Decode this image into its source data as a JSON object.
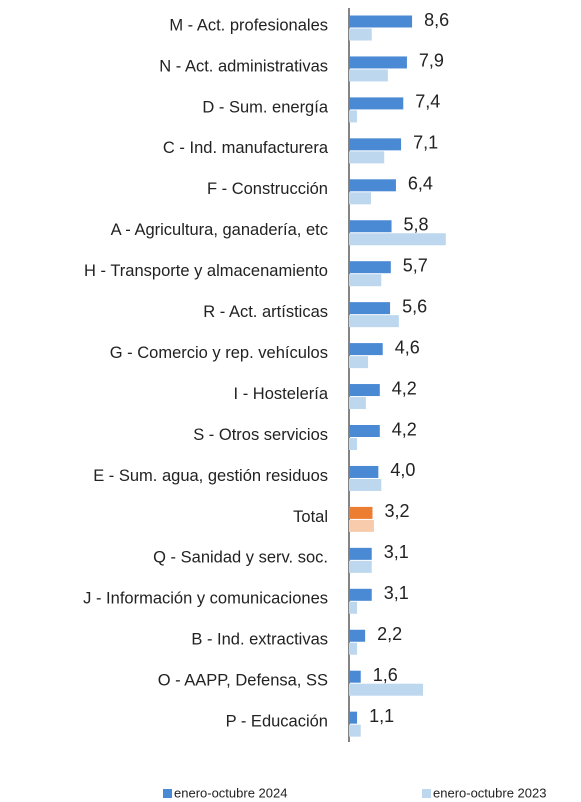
{
  "chart_data": {
    "type": "bar",
    "orientation": "horizontal",
    "categories": [
      "M - Act. profesionales",
      "N - Act. administrativas",
      "D - Sum. energía",
      "C - Ind. manufacturera",
      "F - Construcción",
      "A - Agricultura, ganadería, etc",
      "H - Transporte y almacenamiento",
      "R - Act. artísticas",
      "G - Comercio y rep. vehículos",
      "I - Hostelería",
      "S - Otros servicios",
      "E - Sum. agua, gestión residuos",
      "Total",
      "Q - Sanidad y serv. soc.",
      "J - Información y comunicaciones",
      "B - Ind. extractivas",
      "O - AAPP, Defensa, SS",
      "P - Educación"
    ],
    "series": [
      {
        "name": "enero-octubre 2024",
        "color": "#4a89d4",
        "values": [
          8.6,
          7.9,
          7.4,
          7.1,
          6.4,
          5.8,
          5.7,
          5.6,
          4.6,
          4.2,
          4.2,
          4.0,
          3.2,
          3.1,
          3.1,
          2.2,
          1.6,
          1.1
        ],
        "value_labels": [
          "8,6",
          "7,9",
          "7,4",
          "7,1",
          "6,4",
          "5,8",
          "5,7",
          "5,6",
          "4,6",
          "4,2",
          "4,2",
          "4,0",
          "3,2",
          "3,1",
          "3,1",
          "2,2",
          "1,6",
          "1,1"
        ]
      },
      {
        "name": "enero-octubre 2023",
        "color": "#bdd7ee",
        "values": [
          3.1,
          5.3,
          1.1,
          4.8,
          3.0,
          13.2,
          4.4,
          6.8,
          2.6,
          2.3,
          1.1,
          4.4,
          3.4,
          3.1,
          1.1,
          1.1,
          10.1,
          1.6
        ]
      }
    ],
    "highlight_index": 12,
    "highlight_colors": [
      "#ed7d31",
      "#f8cbad"
    ],
    "xlim": [
      0,
      30
    ],
    "legend": "bottom"
  }
}
